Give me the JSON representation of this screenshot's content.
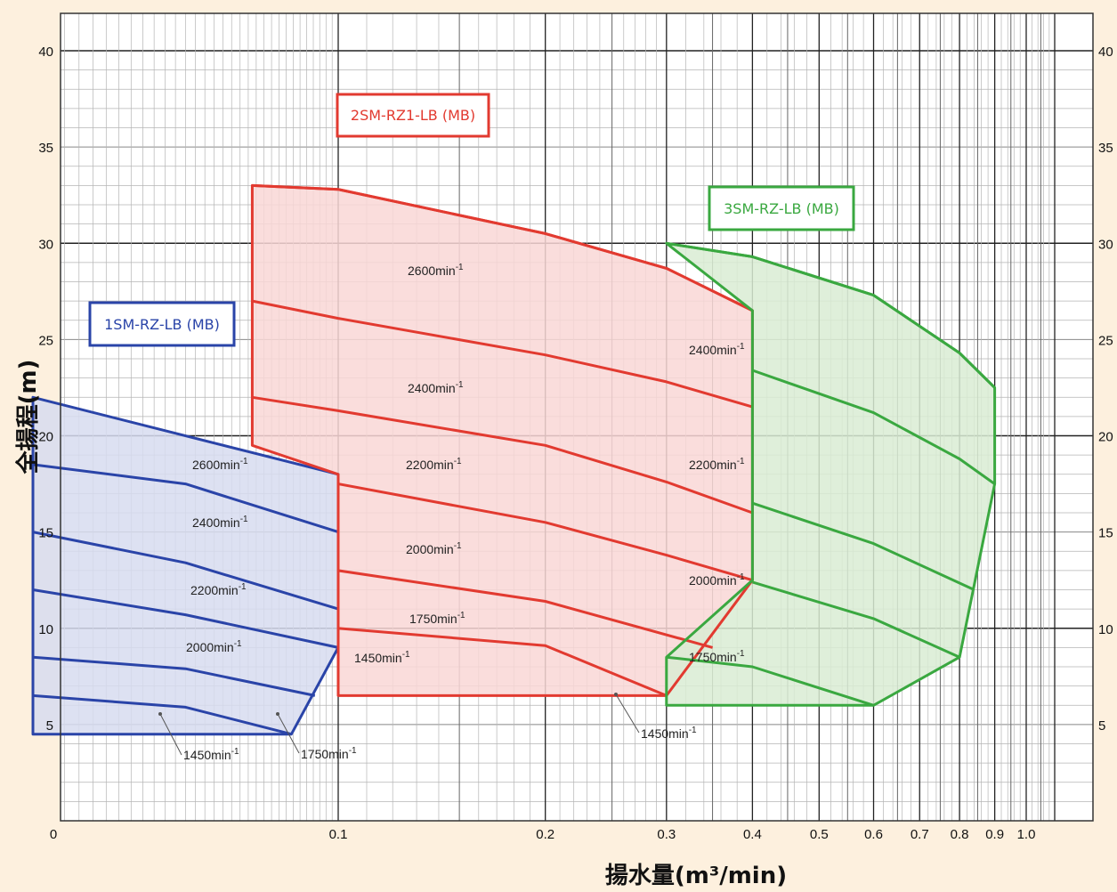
{
  "chart_data": {
    "type": "area",
    "title": "",
    "xlabel": "揚水量(m³/min)",
    "ylabel": "全揚程(m)",
    "xscale": "log",
    "xlim": [
      0.03,
      1.1
    ],
    "ylim": [
      0,
      41
    ],
    "x_ticks": [
      {
        "value": 0.03,
        "label": "0"
      },
      {
        "value": 0.1,
        "label": "0.1"
      },
      {
        "value": 0.2,
        "label": "0.2"
      },
      {
        "value": 0.3,
        "label": "0.3"
      },
      {
        "value": 0.4,
        "label": "0.4"
      },
      {
        "value": 0.5,
        "label": "0.5"
      },
      {
        "value": 0.6,
        "label": "0.6"
      },
      {
        "value": 0.7,
        "label": "0.7"
      },
      {
        "value": 0.8,
        "label": "0.8"
      },
      {
        "value": 0.9,
        "label": "0.9"
      },
      {
        "value": 1.0,
        "label": "1.0"
      }
    ],
    "y_ticks": [
      {
        "value": 5,
        "label": "5"
      },
      {
        "value": 10,
        "label": "10"
      },
      {
        "value": 15,
        "label": "15"
      },
      {
        "value": 20,
        "label": "20"
      },
      {
        "value": 25,
        "label": "25"
      },
      {
        "value": 30,
        "label": "30"
      },
      {
        "value": 35,
        "label": "35"
      },
      {
        "value": 40,
        "label": "40"
      }
    ],
    "grid": true,
    "series": [
      {
        "name": "1SM-RZ-LB (MB)",
        "color": "#2a44a8",
        "fill": "#d7dcf0",
        "label_position": "upper-left",
        "envelope": [
          [
            0.036,
            22
          ],
          [
            0.1,
            18
          ],
          [
            0.1,
            9
          ],
          [
            0.0855,
            4.5
          ],
          [
            0.036,
            4.5
          ]
        ],
        "curves": [
          {
            "speed": "2600min-1",
            "points": [
              [
                0.036,
                18.5
              ],
              [
                0.06,
                17.5
              ],
              [
                0.1,
                15
              ]
            ]
          },
          {
            "speed": "2400min-1",
            "points": [
              [
                0.036,
                15
              ],
              [
                0.06,
                13.4
              ],
              [
                0.1,
                11
              ]
            ]
          },
          {
            "speed": "2200min-1",
            "points": [
              [
                0.036,
                12
              ],
              [
                0.06,
                10.7
              ],
              [
                0.1,
                9
              ]
            ]
          },
          {
            "speed": "2000min-1",
            "points": [
              [
                0.036,
                8.5
              ],
              [
                0.06,
                7.9
              ],
              [
                0.0925,
                6.5
              ]
            ]
          },
          {
            "speed": "1750min-1",
            "points": [
              [
                0.036,
                6.5
              ],
              [
                0.06,
                5.9
              ],
              [
                0.0855,
                4.5
              ]
            ]
          },
          {
            "speed": "1450min-1",
            "points": []
          }
        ]
      },
      {
        "name": "2SM-RZ1-LB (MB)",
        "color": "#e23a30",
        "fill": "#f9d7d6",
        "label_position": "top",
        "envelope": [
          [
            0.075,
            33
          ],
          [
            0.1,
            32.8
          ],
          [
            0.2,
            30.5
          ],
          [
            0.3,
            28.7
          ],
          [
            0.4,
            26.5
          ],
          [
            0.4,
            12.5
          ],
          [
            0.3,
            6.5
          ],
          [
            0.1,
            6.5
          ],
          [
            0.1,
            18
          ],
          [
            0.075,
            19.5
          ]
        ],
        "curves": [
          {
            "speed": "2600min-1",
            "points": [
              [
                0.075,
                33
              ],
              [
                0.1,
                32.8
              ],
              [
                0.2,
                30.5
              ],
              [
                0.3,
                28.7
              ],
              [
                0.4,
                26.5
              ]
            ]
          },
          {
            "speed": "2400min-1",
            "points": [
              [
                0.075,
                27
              ],
              [
                0.1,
                26.1
              ],
              [
                0.2,
                24.2
              ],
              [
                0.3,
                22.8
              ],
              [
                0.4,
                21.5
              ]
            ]
          },
          {
            "speed": "2200min-1",
            "points": [
              [
                0.075,
                22
              ],
              [
                0.1,
                21.3
              ],
              [
                0.2,
                19.5
              ],
              [
                0.3,
                17.6
              ],
              [
                0.4,
                16
              ]
            ]
          },
          {
            "speed": "2000min-1",
            "points": [
              [
                0.1,
                17.5
              ],
              [
                0.2,
                15.5
              ],
              [
                0.3,
                13.8
              ],
              [
                0.4,
                12.5
              ]
            ]
          },
          {
            "speed": "1750min-1",
            "points": [
              [
                0.1,
                13
              ],
              [
                0.2,
                11.4
              ],
              [
                0.35,
                9
              ]
            ]
          },
          {
            "speed": "1450min-1",
            "points": [
              [
                0.1,
                10
              ],
              [
                0.2,
                9.1
              ],
              [
                0.3,
                6.5
              ]
            ]
          }
        ]
      },
      {
        "name": "3SM-RZ-LB (MB)",
        "color": "#3aa840",
        "fill": "#d9ecd4",
        "label_position": "upper-right",
        "envelope": [
          [
            0.3,
            30
          ],
          [
            0.4,
            29.3
          ],
          [
            0.6,
            27.3
          ],
          [
            0.8,
            24.3
          ],
          [
            0.9,
            22.5
          ],
          [
            0.9,
            17.5
          ],
          [
            0.8,
            8.5
          ],
          [
            0.6,
            6
          ],
          [
            0.3,
            6
          ],
          [
            0.3,
            8.5
          ],
          [
            0.4,
            12.5
          ],
          [
            0.4,
            26.5
          ]
        ],
        "curves": [
          {
            "speed": "2400min-1",
            "points": [
              [
                0.3,
                30
              ],
              [
                0.4,
                29.3
              ],
              [
                0.6,
                27.3
              ],
              [
                0.8,
                24.3
              ],
              [
                0.9,
                22.5
              ]
            ]
          },
          {
            "speed": "2200min-1",
            "points": [
              [
                0.4,
                23.4
              ],
              [
                0.6,
                21.2
              ],
              [
                0.8,
                18.8
              ],
              [
                0.9,
                17.5
              ]
            ]
          },
          {
            "speed": "2000min-1",
            "points": [
              [
                0.4,
                16.5
              ],
              [
                0.6,
                14.4
              ],
              [
                0.84,
                12
              ]
            ]
          },
          {
            "speed": "1750min-1",
            "points": [
              [
                0.4,
                12.4
              ],
              [
                0.6,
                10.5
              ],
              [
                0.8,
                8.5
              ]
            ]
          },
          {
            "speed": "1450min-1",
            "points": [
              [
                0.3,
                8.5
              ],
              [
                0.4,
                8
              ],
              [
                0.6,
                6
              ]
            ]
          }
        ]
      }
    ]
  },
  "labels": {
    "s1_2600": "2600min",
    "s1_2400": "2400min",
    "s1_2200": "2200min",
    "s1_2000": "2000min",
    "s1_1450": "1450min",
    "s1_1750": "1750min",
    "s2_2600": "2600min",
    "s2_2400": "2400min",
    "s2_2200": "2200min",
    "s2_2000": "2000min",
    "s2_1750": "1750min",
    "s2_1450": "1450min",
    "s3_2400": "2400min",
    "s3_2200": "2200min",
    "s3_2000": "2000min",
    "s3_1750": "1750min",
    "s3_1450": "1450min",
    "sup": "-1"
  }
}
